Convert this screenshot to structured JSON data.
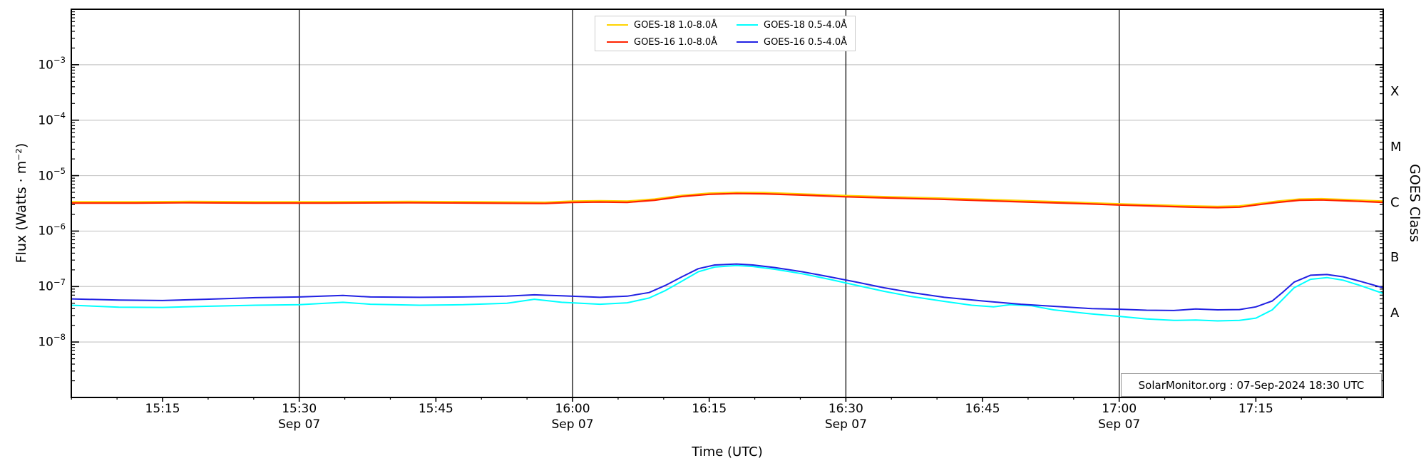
{
  "branding": {
    "annotation": "SolarMonitor.org : 07-Sep-2024 18:30 UTC"
  },
  "axes": {
    "xlabel": "Time (UTC)",
    "ylabel_left": "Flux (Watts · m⁻²)",
    "ylabel_right": "GOES Class",
    "x_major_ticks": [
      {
        "hour": 15.25,
        "label": "15:15",
        "sublabel": ""
      },
      {
        "hour": 15.5,
        "label": "15:30",
        "sublabel": "Sep 07"
      },
      {
        "hour": 15.75,
        "label": "15:45",
        "sublabel": ""
      },
      {
        "hour": 16.0,
        "label": "16:00",
        "sublabel": "Sep 07"
      },
      {
        "hour": 16.25,
        "label": "16:15",
        "sublabel": ""
      },
      {
        "hour": 16.5,
        "label": "16:30",
        "sublabel": "Sep 07"
      },
      {
        "hour": 16.75,
        "label": "16:45",
        "sublabel": ""
      },
      {
        "hour": 17.0,
        "label": "17:00",
        "sublabel": "Sep 07"
      },
      {
        "hour": 17.25,
        "label": "17:15",
        "sublabel": ""
      }
    ],
    "x_minor_step_hours": 0.0833333,
    "y_major_exponents": [
      -3,
      -4,
      -5,
      -6,
      -7,
      -8
    ],
    "goes_class_labels": [
      {
        "label": "X",
        "log_flux": -3.5
      },
      {
        "label": "M",
        "log_flux": -4.5
      },
      {
        "label": "C",
        "log_flux": -5.5
      },
      {
        "label": "B",
        "log_flux": -6.5
      },
      {
        "label": "A",
        "log_flux": -7.5
      }
    ],
    "vline_hours": [
      15.5,
      16.0,
      16.5,
      17.0
    ],
    "xlim_hours": [
      15.083,
      17.483
    ],
    "ylog_range": [
      -9,
      -2
    ],
    "yscale": "log"
  },
  "legend": {
    "items": [
      {
        "label": "GOES-18 1.0-8.0Å",
        "color": "#FFD300"
      },
      {
        "label": "GOES-16 1.0-8.0Å",
        "color": "#FF2200"
      },
      {
        "label": "GOES-18 0.5-4.0Å",
        "color": "#00FFFF"
      },
      {
        "label": "GOES-16 0.5-4.0Å",
        "color": "#2121E3"
      }
    ]
  },
  "colors": {
    "axis": "#000000",
    "grid": "#c8c8c8",
    "background": "#ffffff",
    "vline": "#1a1a1a",
    "legend_border": "#cccccc",
    "annotation_border": "#999999"
  },
  "chart_data": {
    "type": "line",
    "x_unit": "hours UTC on 2024-09-07",
    "y_unit": "Watts per square metre",
    "xlim_hours": [
      15.083,
      17.483
    ],
    "ylim": [
      1e-09,
      0.01
    ],
    "grid": "horizontal decades",
    "legend_position": "top-center",
    "series": [
      {
        "name": "GOES-18 1.0-8.0Å",
        "color": "#FFD300",
        "width": 2.2,
        "points": [
          [
            15.083,
            3.36e-06
          ],
          [
            15.2,
            3.36e-06
          ],
          [
            15.3,
            3.41e-06
          ],
          [
            15.42,
            3.36e-06
          ],
          [
            15.55,
            3.36e-06
          ],
          [
            15.7,
            3.41e-06
          ],
          [
            15.83,
            3.36e-06
          ],
          [
            15.95,
            3.31e-06
          ],
          [
            16.0,
            3.47e-06
          ],
          [
            16.05,
            3.52e-06
          ],
          [
            16.1,
            3.47e-06
          ],
          [
            16.15,
            3.78e-06
          ],
          [
            16.2,
            4.41e-06
          ],
          [
            16.25,
            4.83e-06
          ],
          [
            16.3,
            4.99e-06
          ],
          [
            16.35,
            4.94e-06
          ],
          [
            16.42,
            4.67e-06
          ],
          [
            16.5,
            4.36e-06
          ],
          [
            16.58,
            4.15e-06
          ],
          [
            16.67,
            3.94e-06
          ],
          [
            16.75,
            3.73e-06
          ],
          [
            16.83,
            3.52e-06
          ],
          [
            16.92,
            3.31e-06
          ],
          [
            17.0,
            3.1e-06
          ],
          [
            17.08,
            2.94e-06
          ],
          [
            17.13,
            2.84e-06
          ],
          [
            17.18,
            2.78e-06
          ],
          [
            17.22,
            2.84e-06
          ],
          [
            17.25,
            3.1e-06
          ],
          [
            17.29,
            3.47e-06
          ],
          [
            17.33,
            3.78e-06
          ],
          [
            17.37,
            3.83e-06
          ],
          [
            17.42,
            3.68e-06
          ],
          [
            17.483,
            3.47e-06
          ]
        ]
      },
      {
        "name": "GOES-16 1.0-8.0Å",
        "color": "#FF2200",
        "width": 2.2,
        "points": [
          [
            15.083,
            3.2e-06
          ],
          [
            15.2,
            3.2e-06
          ],
          [
            15.3,
            3.25e-06
          ],
          [
            15.42,
            3.2e-06
          ],
          [
            15.55,
            3.2e-06
          ],
          [
            15.7,
            3.25e-06
          ],
          [
            15.83,
            3.2e-06
          ],
          [
            15.95,
            3.15e-06
          ],
          [
            16.0,
            3.3e-06
          ],
          [
            16.05,
            3.35e-06
          ],
          [
            16.1,
            3.3e-06
          ],
          [
            16.15,
            3.6e-06
          ],
          [
            16.2,
            4.2e-06
          ],
          [
            16.25,
            4.6e-06
          ],
          [
            16.3,
            4.75e-06
          ],
          [
            16.35,
            4.7e-06
          ],
          [
            16.42,
            4.45e-06
          ],
          [
            16.5,
            4.15e-06
          ],
          [
            16.58,
            3.95e-06
          ],
          [
            16.67,
            3.75e-06
          ],
          [
            16.75,
            3.55e-06
          ],
          [
            16.83,
            3.35e-06
          ],
          [
            16.92,
            3.15e-06
          ],
          [
            17.0,
            2.95e-06
          ],
          [
            17.08,
            2.8e-06
          ],
          [
            17.13,
            2.7e-06
          ],
          [
            17.18,
            2.65e-06
          ],
          [
            17.22,
            2.7e-06
          ],
          [
            17.25,
            2.95e-06
          ],
          [
            17.29,
            3.3e-06
          ],
          [
            17.33,
            3.6e-06
          ],
          [
            17.37,
            3.65e-06
          ],
          [
            17.42,
            3.5e-06
          ],
          [
            17.483,
            3.3e-06
          ]
        ]
      },
      {
        "name": "GOES-18 0.5-4.0Å",
        "color": "#00FFFF",
        "width": 2.0,
        "points": [
          [
            15.083,
            4.6e-08
          ],
          [
            15.17,
            4.25e-08
          ],
          [
            15.25,
            4.2e-08
          ],
          [
            15.33,
            4.4e-08
          ],
          [
            15.42,
            4.6e-08
          ],
          [
            15.5,
            4.7e-08
          ],
          [
            15.58,
            5.2e-08
          ],
          [
            15.63,
            4.8e-08
          ],
          [
            15.72,
            4.6e-08
          ],
          [
            15.8,
            4.7e-08
          ],
          [
            15.88,
            5e-08
          ],
          [
            15.93,
            5.9e-08
          ],
          [
            15.98,
            5.2e-08
          ],
          [
            16.05,
            4.8e-08
          ],
          [
            16.1,
            5.1e-08
          ],
          [
            16.14,
            6.2e-08
          ],
          [
            16.17,
            8.5e-08
          ],
          [
            16.2,
            1.25e-07
          ],
          [
            16.23,
            1.85e-07
          ],
          [
            16.26,
            2.25e-07
          ],
          [
            16.3,
            2.4e-07
          ],
          [
            16.33,
            2.3e-07
          ],
          [
            16.37,
            2.05e-07
          ],
          [
            16.42,
            1.7e-07
          ],
          [
            16.47,
            1.35e-07
          ],
          [
            16.52,
            1.05e-07
          ],
          [
            16.57,
            8.2e-08
          ],
          [
            16.62,
            6.6e-08
          ],
          [
            16.68,
            5.4e-08
          ],
          [
            16.73,
            4.6e-08
          ],
          [
            16.77,
            4.3e-08
          ],
          [
            16.8,
            4.7e-08
          ],
          [
            16.84,
            4.5e-08
          ],
          [
            16.88,
            3.8e-08
          ],
          [
            16.95,
            3.2e-08
          ],
          [
            17.0,
            2.9e-08
          ],
          [
            17.05,
            2.6e-08
          ],
          [
            17.1,
            2.45e-08
          ],
          [
            17.14,
            2.5e-08
          ],
          [
            17.18,
            2.4e-08
          ],
          [
            17.22,
            2.45e-08
          ],
          [
            17.25,
            2.7e-08
          ],
          [
            17.28,
            3.8e-08
          ],
          [
            17.3,
            6e-08
          ],
          [
            17.32,
            9.5e-08
          ],
          [
            17.35,
            1.35e-07
          ],
          [
            17.38,
            1.45e-07
          ],
          [
            17.41,
            1.3e-07
          ],
          [
            17.44,
            1.05e-07
          ],
          [
            17.483,
            7.5e-08
          ]
        ]
      },
      {
        "name": "GOES-16 0.5-4.0Å",
        "color": "#2121E3",
        "width": 2.0,
        "points": [
          [
            15.083,
            6e-08
          ],
          [
            15.17,
            5.7e-08
          ],
          [
            15.25,
            5.6e-08
          ],
          [
            15.33,
            5.9e-08
          ],
          [
            15.42,
            6.3e-08
          ],
          [
            15.5,
            6.5e-08
          ],
          [
            15.58,
            6.9e-08
          ],
          [
            15.63,
            6.5e-08
          ],
          [
            15.72,
            6.4e-08
          ],
          [
            15.8,
            6.5e-08
          ],
          [
            15.88,
            6.7e-08
          ],
          [
            15.93,
            7.1e-08
          ],
          [
            15.98,
            6.8e-08
          ],
          [
            16.05,
            6.4e-08
          ],
          [
            16.1,
            6.7e-08
          ],
          [
            16.14,
            7.8e-08
          ],
          [
            16.17,
            1.05e-07
          ],
          [
            16.2,
            1.5e-07
          ],
          [
            16.23,
            2.1e-07
          ],
          [
            16.26,
            2.45e-07
          ],
          [
            16.3,
            2.55e-07
          ],
          [
            16.33,
            2.45e-07
          ],
          [
            16.37,
            2.2e-07
          ],
          [
            16.42,
            1.85e-07
          ],
          [
            16.47,
            1.5e-07
          ],
          [
            16.52,
            1.2e-07
          ],
          [
            16.57,
            9.5e-08
          ],
          [
            16.62,
            7.8e-08
          ],
          [
            16.68,
            6.4e-08
          ],
          [
            16.75,
            5.5e-08
          ],
          [
            16.82,
            4.8e-08
          ],
          [
            16.88,
            4.4e-08
          ],
          [
            16.95,
            4e-08
          ],
          [
            17.0,
            3.9e-08
          ],
          [
            17.05,
            3.75e-08
          ],
          [
            17.1,
            3.7e-08
          ],
          [
            17.14,
            3.95e-08
          ],
          [
            17.18,
            3.8e-08
          ],
          [
            17.22,
            3.85e-08
          ],
          [
            17.25,
            4.3e-08
          ],
          [
            17.28,
            5.5e-08
          ],
          [
            17.3,
            8e-08
          ],
          [
            17.32,
            1.2e-07
          ],
          [
            17.35,
            1.6e-07
          ],
          [
            17.38,
            1.65e-07
          ],
          [
            17.41,
            1.5e-07
          ],
          [
            17.44,
            1.25e-07
          ],
          [
            17.483,
            9.5e-08
          ]
        ]
      }
    ]
  }
}
